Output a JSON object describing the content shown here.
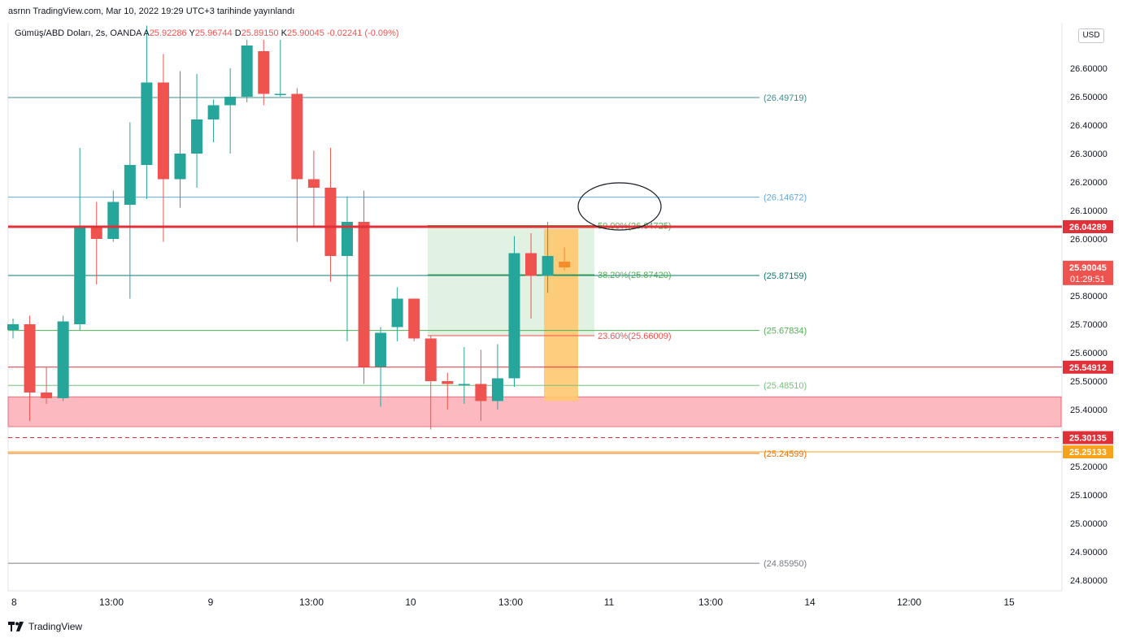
{
  "header": {
    "publish_text": "asrnn TradingView.com, Mar 10, 2022 19:29 UTC+3 tarihinde yayınlandı"
  },
  "legend": {
    "symbol": "Gümüş/ABD Doları, 2s, OANDA",
    "o_label": "A",
    "o_value": "25.92286",
    "h_label": "Y",
    "h_value": "25.96744",
    "l_label": "D",
    "l_value": "25.89150",
    "c_label": "K",
    "c_value": "25.90045",
    "change": "-0.02241 (-0.09%)"
  },
  "currency": "USD",
  "footer": {
    "brand": "TradingView"
  },
  "chart_data": {
    "type": "candlestick",
    "ylim": [
      24.75,
      26.7
    ],
    "y_ticks": [
      "24.80000",
      "24.90000",
      "25.00000",
      "25.10000",
      "25.20000",
      "25.30000",
      "25.40000",
      "25.50000",
      "25.60000",
      "25.70000",
      "25.80000",
      "26.00000",
      "26.10000",
      "26.20000",
      "26.30000",
      "26.40000",
      "26.50000",
      "26.60000"
    ],
    "x_ticks": [
      "8",
      "13:00",
      "9",
      "13:00",
      "10",
      "13:00",
      "11",
      "13:00",
      "14",
      "12:00",
      "15"
    ],
    "candles": [
      {
        "o": 25.68,
        "h": 25.72,
        "l": 25.65,
        "c": 25.7
      },
      {
        "o": 25.7,
        "h": 25.73,
        "l": 25.36,
        "c": 25.46
      },
      {
        "o": 25.46,
        "h": 25.55,
        "l": 25.42,
        "c": 25.44
      },
      {
        "o": 25.44,
        "h": 25.73,
        "l": 25.43,
        "c": 25.71
      },
      {
        "o": 25.7,
        "h": 26.32,
        "l": 25.68,
        "c": 26.04
      },
      {
        "o": 26.04,
        "h": 26.13,
        "l": 25.84,
        "c": 26.0
      },
      {
        "o": 26.0,
        "h": 26.17,
        "l": 25.99,
        "c": 26.13
      },
      {
        "o": 26.12,
        "h": 26.41,
        "l": 25.79,
        "c": 26.26
      },
      {
        "o": 26.26,
        "h": 26.75,
        "l": 26.14,
        "c": 26.55
      },
      {
        "o": 26.55,
        "h": 26.65,
        "l": 25.99,
        "c": 26.21
      },
      {
        "o": 26.21,
        "h": 26.59,
        "l": 26.11,
        "c": 26.3
      },
      {
        "o": 26.3,
        "h": 26.58,
        "l": 26.18,
        "c": 26.42
      },
      {
        "o": 26.42,
        "h": 26.49,
        "l": 26.34,
        "c": 26.47
      },
      {
        "o": 26.47,
        "h": 26.6,
        "l": 26.3,
        "c": 26.5
      },
      {
        "o": 26.5,
        "h": 26.7,
        "l": 26.48,
        "c": 26.68
      },
      {
        "o": 26.66,
        "h": 26.7,
        "l": 26.47,
        "c": 26.51
      },
      {
        "o": 26.51,
        "h": 26.7,
        "l": 26.5,
        "c": 26.51
      },
      {
        "o": 26.51,
        "h": 26.53,
        "l": 25.99,
        "c": 26.21
      },
      {
        "o": 26.21,
        "h": 26.31,
        "l": 26.04,
        "c": 26.18
      },
      {
        "o": 26.18,
        "h": 26.32,
        "l": 25.85,
        "c": 25.94
      },
      {
        "o": 25.94,
        "h": 26.15,
        "l": 25.64,
        "c": 26.06
      },
      {
        "o": 26.06,
        "h": 26.17,
        "l": 25.49,
        "c": 25.55
      },
      {
        "o": 25.55,
        "h": 25.69,
        "l": 25.41,
        "c": 25.67
      },
      {
        "o": 25.69,
        "h": 25.83,
        "l": 25.64,
        "c": 25.79
      },
      {
        "o": 25.79,
        "h": 25.79,
        "l": 25.64,
        "c": 25.65
      },
      {
        "o": 25.65,
        "h": 25.66,
        "l": 25.33,
        "c": 25.5
      },
      {
        "o": 25.5,
        "h": 25.53,
        "l": 25.4,
        "c": 25.49
      },
      {
        "o": 25.49,
        "h": 25.62,
        "l": 25.42,
        "c": 25.49
      },
      {
        "o": 25.49,
        "h": 25.61,
        "l": 25.36,
        "c": 25.43
      },
      {
        "o": 25.43,
        "h": 25.63,
        "l": 25.4,
        "c": 25.51
      },
      {
        "o": 25.51,
        "h": 26.01,
        "l": 25.48,
        "c": 25.95
      },
      {
        "o": 25.95,
        "h": 26.02,
        "l": 25.72,
        "c": 25.87
      },
      {
        "o": 25.87,
        "h": 26.06,
        "l": 25.81,
        "c": 25.94
      },
      {
        "o": 25.92,
        "h": 25.97,
        "l": 25.89,
        "c": 25.9
      }
    ],
    "horizontal_lines": [
      {
        "price": 26.49719,
        "label": "(26.49719)",
        "color": "#3b8e93"
      },
      {
        "price": 26.14672,
        "label": "(26.14672)",
        "color": "#5ca9e3"
      },
      {
        "price": 25.87159,
        "label": "(25.87159)",
        "color": "#0d7a6f"
      },
      {
        "price": 25.67834,
        "label": "(25.67834)",
        "color": "#4caf50"
      },
      {
        "price": 25.4851,
        "label": "(25.48510)",
        "color": "#74c179"
      },
      {
        "price": 25.24599,
        "label": "(25.24599)",
        "color": "#ef6c00"
      },
      {
        "price": 24.8595,
        "label": "(24.85950)",
        "color": "#787b86"
      }
    ],
    "fib_levels": [
      {
        "price": 26.04725,
        "label": "50.00%(26.04725)",
        "color": "#4caf50"
      },
      {
        "price": 25.8742,
        "label": "38.20%(25.87420)",
        "color": "#4caf50"
      },
      {
        "price": 25.66009,
        "label": "23.60%(25.66009)",
        "color": "#ef5350"
      }
    ],
    "price_badges": [
      {
        "price": 26.04289,
        "label": "26.04289",
        "bg": "#e03038"
      },
      {
        "price": 25.90045,
        "label": "25.90045",
        "sub": "01:29:51",
        "bg": "#ef5350"
      },
      {
        "price": 25.54912,
        "label": "25.54912",
        "bg": "#e03038"
      },
      {
        "price": 25.30135,
        "label": "25.30135",
        "bg": "#e03038"
      },
      {
        "price": 25.25133,
        "label": "25.25133",
        "bg": "#f7a21b"
      }
    ],
    "support_zone": [
      25.34,
      25.445
    ],
    "colors": {
      "up": "#26a69a",
      "down": "#ef5350",
      "grid": "#e0e3eb",
      "text": "#131722"
    }
  }
}
